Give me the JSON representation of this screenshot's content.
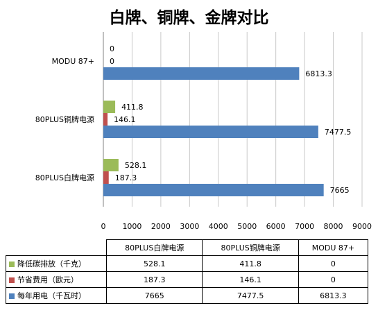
{
  "chart_data": {
    "type": "bar",
    "orientation": "horizontal",
    "title": "白牌、铜牌、金牌对比",
    "categories": [
      "80PLUS白牌电源",
      "80PLUS铜牌电源",
      "MODU 87+"
    ],
    "series": [
      {
        "name": "降低碳排放（千克）",
        "color": "#9bbb59",
        "values": [
          528.1,
          411.8,
          0
        ],
        "labels": [
          "528.1",
          "411.8",
          "0"
        ]
      },
      {
        "name": "节省费用（欧元）",
        "color": "#c0504d",
        "values": [
          187.3,
          146.1,
          0
        ],
        "labels": [
          "187.3",
          "146.1",
          "0"
        ]
      },
      {
        "name": "每年用电（千瓦时）",
        "color": "#4f81bd",
        "values": [
          7665,
          7477.5,
          6813.3
        ],
        "labels": [
          "7665",
          "7477.5",
          "6813.3"
        ]
      }
    ],
    "xlim": [
      0,
      9000
    ],
    "ticks": [
      "0",
      "1000",
      "2000",
      "3000",
      "4000",
      "5000",
      "6000",
      "7000",
      "8000",
      "9000"
    ],
    "grid": true,
    "legend": "data-table"
  }
}
